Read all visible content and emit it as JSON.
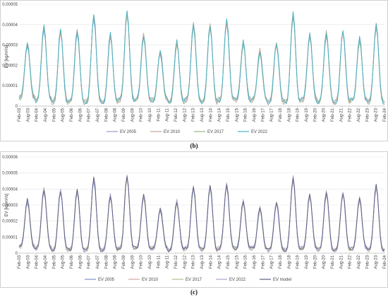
{
  "chart_data": [
    {
      "id": "b",
      "type": "line",
      "caption": "(b)",
      "ylabel": "EV [kg/m²/s]",
      "xlabel": "",
      "ylim": [
        0,
        5e-05
      ],
      "yticks": [
        "0",
        "0.00001",
        "0.00002",
        "0.00003",
        "0.00004",
        "0.00005"
      ],
      "grid": true,
      "legend": "bottom",
      "x": [
        "Feb-03",
        "Aug-03",
        "Feb-04",
        "Aug-04",
        "Feb-05",
        "Aug-05",
        "Feb-06",
        "Aug-06",
        "Feb-07",
        "Aug-07",
        "Feb-08",
        "Aug-08",
        "Feb-09",
        "Aug-09",
        "Feb-10",
        "Aug-10",
        "Feb-11",
        "Aug-11",
        "Feb-12",
        "Aug-12",
        "Feb-13",
        "Aug-13",
        "Feb-14",
        "Aug-14",
        "Feb-15",
        "Aug-15",
        "Feb-16",
        "Aug-16",
        "Feb-17",
        "Aug-17",
        "Feb-18",
        "Aug-18",
        "Feb-19",
        "Aug-19",
        "Feb-20",
        "Aug-20",
        "Feb-21",
        "Aug-21",
        "Feb-22",
        "Aug-22",
        "Feb-23",
        "Aug-23",
        "Feb-24"
      ],
      "peaks": [
        3.1e-05,
        3.9e-05,
        3.7e-05,
        3.7e-05,
        4.5e-05,
        3.5e-05,
        4.6e-05,
        3.5e-05,
        2.7e-05,
        3.1e-05,
        4e-05,
        4e-05,
        4.2e-05,
        3.1e-05,
        2.7e-05,
        3.1e-05,
        4.5e-05,
        3.5e-05,
        3.6e-05,
        3.7e-05,
        3.3e-05,
        4e-05
      ],
      "troughs": [
        4e-06,
        3e-06,
        2e-06,
        2e-06,
        2e-06,
        2e-06,
        3e-06,
        3e-06,
        3e-06,
        2e-06,
        3e-06,
        2e-06,
        3e-06,
        3e-06,
        3e-06,
        2e-06,
        2e-06,
        3e-06,
        2e-06,
        2e-06,
        3e-06,
        2e-06,
        2e-06
      ],
      "series": [
        {
          "name": "EV 2005",
          "color": "#8fa0bc",
          "scale": 0.98
        },
        {
          "name": "EV 2010",
          "color": "#c5a49c",
          "scale": 1.0
        },
        {
          "name": "EV 2017",
          "color": "#9cb387",
          "scale": 0.99
        },
        {
          "name": "EV 2022",
          "color": "#48b1cb",
          "scale": 1.01
        }
      ]
    },
    {
      "id": "c",
      "type": "line",
      "caption": "(c)",
      "ylabel": "EV [kg/m²/s]",
      "xlabel": "",
      "ylim": [
        0,
        6e-05
      ],
      "yticks": [
        "0",
        "0.00001",
        "0.00002",
        "0.00003",
        "0.00004",
        "0.00005",
        "0.00006"
      ],
      "grid": true,
      "legend": "bottom",
      "x": [
        "Feb-03",
        "Aug-03",
        "Feb-04",
        "Aug-04",
        "Feb-05",
        "Aug-05",
        "Feb-06",
        "Aug-06",
        "Feb-07",
        "Aug-07",
        "Feb-08",
        "Aug-08",
        "Feb-09",
        "Aug-09",
        "Feb-10",
        "Aug-10",
        "Feb-11",
        "Aug-11",
        "Feb-12",
        "Aug-12",
        "Feb-13",
        "Aug-13",
        "Feb-14",
        "Aug-14",
        "Feb-15",
        "Aug-15",
        "Feb-16",
        "Aug-16",
        "Feb-17",
        "Aug-17",
        "Feb-18",
        "Aug-18",
        "Feb-19",
        "Aug-19",
        "Feb-20",
        "Aug-20",
        "Feb-21",
        "Aug-21",
        "Feb-22",
        "Aug-22",
        "Feb-23",
        "Aug-23",
        "Feb-24"
      ],
      "peaks": [
        3.3e-05,
        4e-05,
        3.9e-05,
        3.9e-05,
        4.7e-05,
        3.6e-05,
        4.8e-05,
        3.6e-05,
        2.8e-05,
        3.2e-05,
        4.1e-05,
        4.2e-05,
        4.3e-05,
        3.2e-05,
        2.8e-05,
        3.2e-05,
        4.7e-05,
        3.6e-05,
        3.8e-05,
        3.8e-05,
        3.4e-05,
        4.2e-05
      ],
      "troughs": [
        4e-06,
        3e-06,
        2e-06,
        2e-06,
        2e-06,
        2e-06,
        3e-06,
        3e-06,
        3e-06,
        2e-06,
        3e-06,
        2e-06,
        3e-06,
        3e-06,
        3e-06,
        2e-06,
        2e-06,
        3e-06,
        2e-06,
        2e-06,
        3e-06,
        2e-06,
        2e-06
      ],
      "series": [
        {
          "name": "EV 2005",
          "color": "#7f93c4",
          "scale": 0.98
        },
        {
          "name": "EV 2010",
          "color": "#d6a6a0",
          "scale": 1.0
        },
        {
          "name": "EV 2017",
          "color": "#a9c08f",
          "scale": 0.99
        },
        {
          "name": "EV 2022",
          "color": "#b6a1c9",
          "scale": 1.01
        },
        {
          "name": "EV model",
          "color": "#5a5f86",
          "scale": 1.0
        }
      ]
    }
  ]
}
